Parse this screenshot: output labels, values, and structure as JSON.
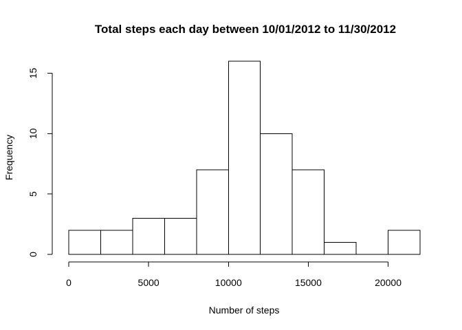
{
  "chart_data": {
    "type": "bar",
    "subtype": "histogram",
    "title": "Total steps each day between 10/01/2012 to 11/30/2012",
    "xlabel": "Number of steps",
    "ylabel": "Frequency",
    "bins": [
      {
        "start": 0,
        "end": 2000,
        "count": 2
      },
      {
        "start": 2000,
        "end": 4000,
        "count": 2
      },
      {
        "start": 4000,
        "end": 6000,
        "count": 3
      },
      {
        "start": 6000,
        "end": 8000,
        "count": 3
      },
      {
        "start": 8000,
        "end": 10000,
        "count": 7
      },
      {
        "start": 10000,
        "end": 12000,
        "count": 16
      },
      {
        "start": 12000,
        "end": 14000,
        "count": 10
      },
      {
        "start": 14000,
        "end": 16000,
        "count": 7
      },
      {
        "start": 16000,
        "end": 18000,
        "count": 1
      },
      {
        "start": 18000,
        "end": 20000,
        "count": 0
      },
      {
        "start": 20000,
        "end": 22000,
        "count": 2
      }
    ],
    "xticks": [
      0,
      5000,
      10000,
      15000,
      20000
    ],
    "yticks": [
      0,
      5,
      10,
      15
    ],
    "xlim": [
      0,
      22000
    ],
    "ylim": [
      0,
      16
    ],
    "grid": false,
    "legend": "none",
    "colors": {
      "bar_fill": "#ffffff",
      "bar_stroke": "#000000"
    }
  }
}
